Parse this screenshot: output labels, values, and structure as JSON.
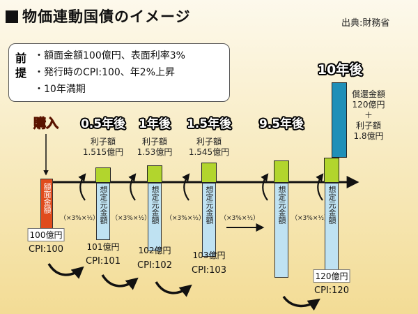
{
  "title": "物価連動国債のイメージ",
  "source": "出典:財務省",
  "premise": {
    "label": "前提",
    "items": [
      "・額面金額100億円、表面利率3%",
      "・発行時のCPI:100、年2%上昇",
      "・10年満期"
    ]
  },
  "purchase": {
    "label": "購入",
    "bar_text": "額面金額",
    "amount": "100億円",
    "cpi": "CPI:100"
  },
  "periods": [
    {
      "label": "0.5年後",
      "coupon_label": "利子額",
      "coupon_value": "1.515億円",
      "multiplier": "（×3%×½）",
      "principal_text": "想定元金額",
      "amount": "101億円",
      "cpi": "CPI:101"
    },
    {
      "label": "1年後",
      "coupon_label": "利子額",
      "coupon_value": "1.53億円",
      "multiplier": "（×3%×½）",
      "principal_text": "想定元金額",
      "amount": "102億円",
      "cpi": "CPI:102"
    },
    {
      "label": "1.5年後",
      "coupon_label": "利子額",
      "coupon_value": "1.545億円",
      "multiplier": "（×3%×½）",
      "principal_text": "想定元金額",
      "amount": "103億円",
      "cpi": "CPI:103"
    },
    {
      "label": "9.5年後",
      "multiplier": "（×3%×½）",
      "principal_text": "想定元金額"
    },
    {
      "label": "10年後",
      "multiplier": "（×3%×½）",
      "principal_text": "想定元金額",
      "amount": "120億円",
      "cpi": "CPI:120"
    }
  ],
  "redemption": {
    "line1": "償還金額",
    "line2": "120億円",
    "plus": "＋",
    "line3": "利子額",
    "line4": "1.8億円"
  },
  "colors": {
    "purchase_bar": "#e04b1c",
    "principal_bar": "#bfe2f2",
    "coupon_bar": "#b2d52d",
    "redemption_bar": "#1f8fb8",
    "background_top": "#fdf9ec",
    "background_bottom": "#f3dc95"
  }
}
